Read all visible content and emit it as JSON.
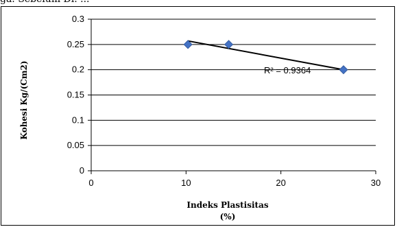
{
  "caption_fragment": "ga. Sebelum Di. ...",
  "chart_data": {
    "type": "scatter",
    "title": "",
    "xlabel_line1": "Indeks Plastisitas",
    "xlabel_line2": "(%)",
    "ylabel": "Kohesi Kg/(Cm2)",
    "xlim": [
      0,
      30
    ],
    "ylim": [
      0,
      0.3
    ],
    "x_ticks": [
      0,
      10,
      20,
      30
    ],
    "y_ticks": [
      0,
      0.05,
      0.1,
      0.15,
      0.2,
      0.25,
      0.3
    ],
    "x_tick_labels": [
      "0",
      "10",
      "20",
      "30"
    ],
    "y_tick_labels": [
      "0",
      "0.05",
      "0.1",
      "0.15",
      "0.2",
      "0.25",
      "0.3"
    ],
    "grid": "horizontal",
    "series": [
      {
        "points": [
          {
            "x": 10.2,
            "y": 0.25
          },
          {
            "x": 14.5,
            "y": 0.25
          },
          {
            "x": 26.6,
            "y": 0.2
          }
        ],
        "color": "#4472C4"
      }
    ],
    "trendline": {
      "type": "linear",
      "x_start": 10.2,
      "x_end": 26.6,
      "y_start": 0.257,
      "y_end": 0.2,
      "color": "#000000"
    },
    "annotation": "R² = 0.9364"
  }
}
